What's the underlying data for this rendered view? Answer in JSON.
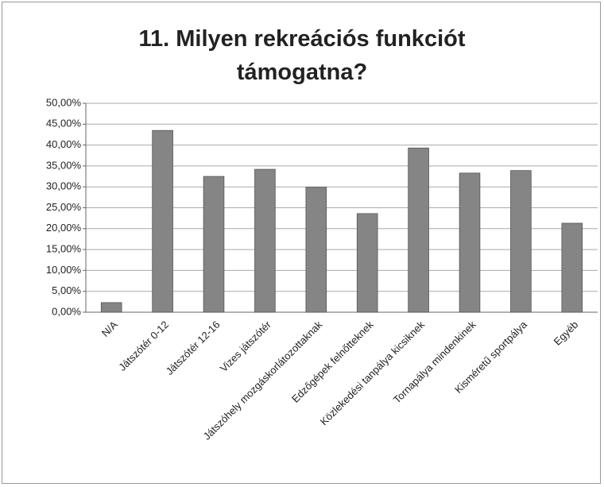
{
  "chart_data": {
    "type": "bar",
    "title": "11. Milyen rekreációs funkciót támogatna?",
    "categories": [
      "N/A",
      "Játszótér 0-12",
      "Játszótér 12-16",
      "Vizes játszótér",
      "Játszóhely mozgáskorlátozottaknak",
      "Edzőgépek felnőtteknek",
      "Közlekedési tanpálya kicsiknek",
      "Tornapálya mindenkinek",
      "Kisméretű sportpálya",
      "Egyéb"
    ],
    "values": [
      2.3,
      43.5,
      32.5,
      34.2,
      29.9,
      23.6,
      39.3,
      33.3,
      33.9,
      21.3
    ],
    "color": "#858585",
    "ylim": [
      0,
      50
    ],
    "yticks": [
      {
        "value": 0,
        "label": "0,00%"
      },
      {
        "value": 5,
        "label": "5,00%"
      },
      {
        "value": 10,
        "label": "10,00%"
      },
      {
        "value": 15,
        "label": "15,00%"
      },
      {
        "value": 20,
        "label": "20,00%"
      },
      {
        "value": 25,
        "label": "25,00%"
      },
      {
        "value": 30,
        "label": "30,00%"
      },
      {
        "value": 35,
        "label": "35,00%"
      },
      {
        "value": 40,
        "label": "40,00%"
      },
      {
        "value": 45,
        "label": "45,00%"
      },
      {
        "value": 50,
        "label": "50,00%"
      }
    ],
    "grid": true
  }
}
